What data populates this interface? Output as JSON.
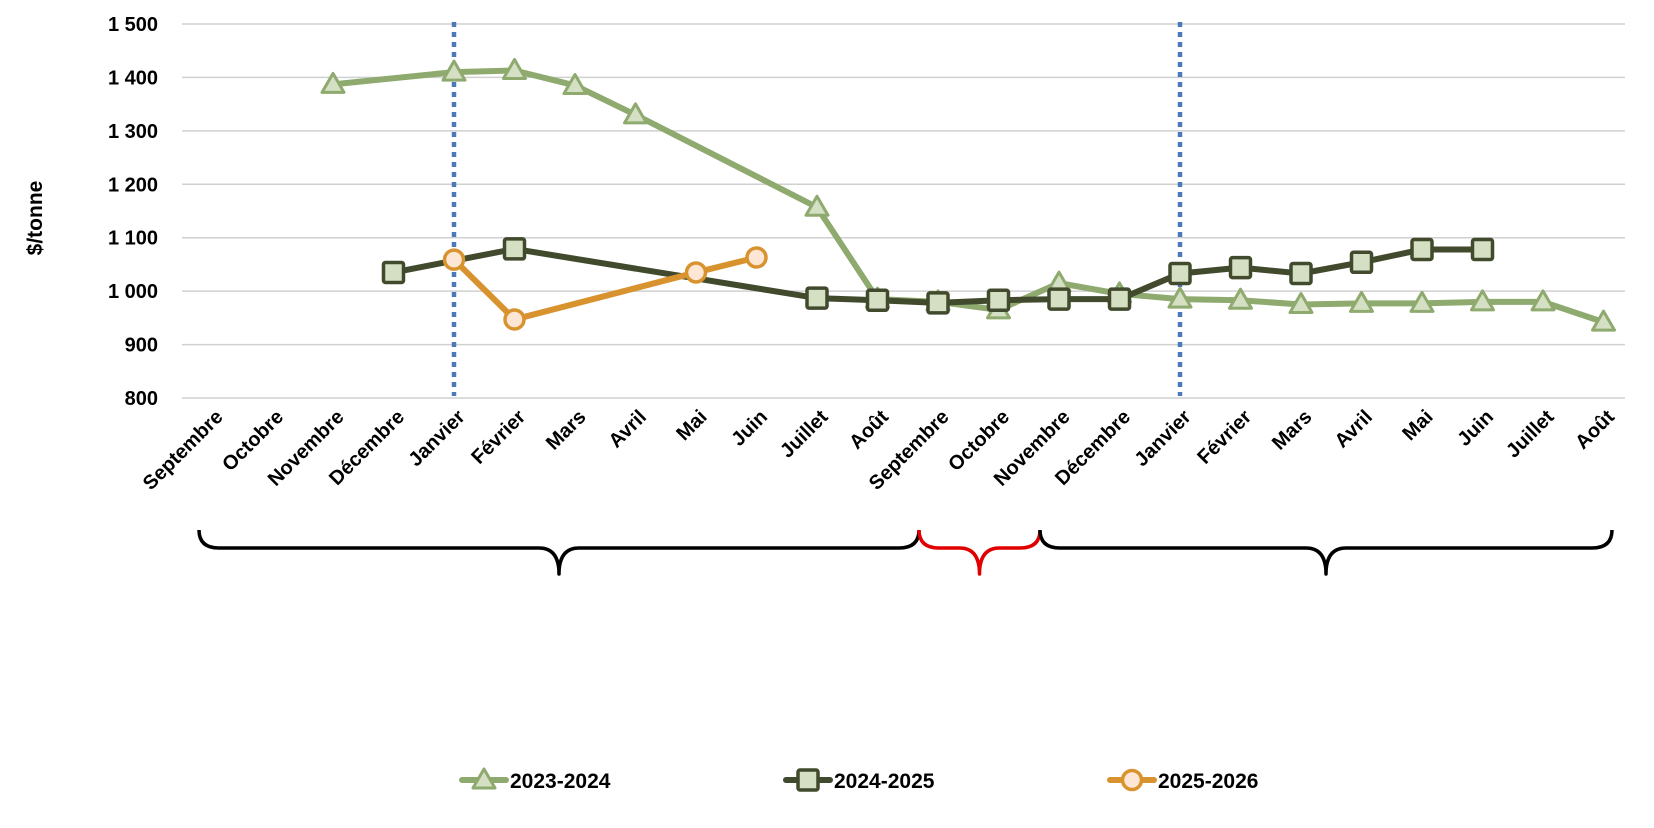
{
  "chart_data": {
    "type": "line",
    "ylabel": "$/tonne",
    "xlabel": "",
    "title": "",
    "ylim": [
      800,
      1500
    ],
    "yticks": [
      800,
      900,
      1000,
      1100,
      1200,
      1300,
      1400,
      1500
    ],
    "ytick_labels": [
      "800",
      "900",
      "1 000",
      "1 100",
      "1 200",
      "1 300",
      "1 400",
      "1 500"
    ],
    "grid": true,
    "legend_position": "bottom",
    "categories": [
      "Septembre",
      "Octobre",
      "Novembre",
      "Décembre",
      "Janvier",
      "Février",
      "Mars",
      "Avril",
      "Mai",
      "Juin",
      "Juillet",
      "Août",
      "Septembre",
      "Octobre",
      "Novembre",
      "Décembre",
      "Janvier",
      "Février",
      "Mars",
      "Avril",
      "Mai",
      "Juin",
      "Juillet",
      "Août"
    ],
    "vertical_reference_lines_at": [
      4,
      16
    ],
    "brackets": [
      {
        "from": 0,
        "to": 12,
        "color": "#000000"
      },
      {
        "from": 12,
        "to": 14,
        "color": "#e00000"
      },
      {
        "from": 14,
        "to": 23,
        "color": "#000000"
      }
    ],
    "series": [
      {
        "name": "2023-2024",
        "marker": "triangle",
        "color": "#8faa6e",
        "fill": "#d4dfc4",
        "values": [
          null,
          null,
          1387,
          null,
          1410,
          1413,
          1385,
          1330,
          null,
          null,
          1157,
          985,
          980,
          965,
          1015,
          995,
          985,
          983,
          975,
          977,
          977,
          980,
          980,
          942
        ]
      },
      {
        "name": "2024-2025",
        "marker": "square",
        "color": "#414a2c",
        "fill": "#d4dfc4",
        "values": [
          null,
          null,
          null,
          1035,
          null,
          1079,
          null,
          null,
          null,
          null,
          987,
          983,
          978,
          983,
          985,
          985,
          1033,
          1044,
          1033,
          1054,
          1078,
          1078,
          null,
          null
        ]
      },
      {
        "name": "2025-2026",
        "marker": "circle",
        "color": "#d8932f",
        "fill": "#fde6d4",
        "values": [
          null,
          null,
          null,
          null,
          1059,
          947,
          null,
          null,
          1035,
          1063,
          null,
          null,
          null,
          null,
          null,
          null,
          null,
          null,
          null,
          null,
          null,
          null,
          null,
          null
        ]
      }
    ]
  }
}
